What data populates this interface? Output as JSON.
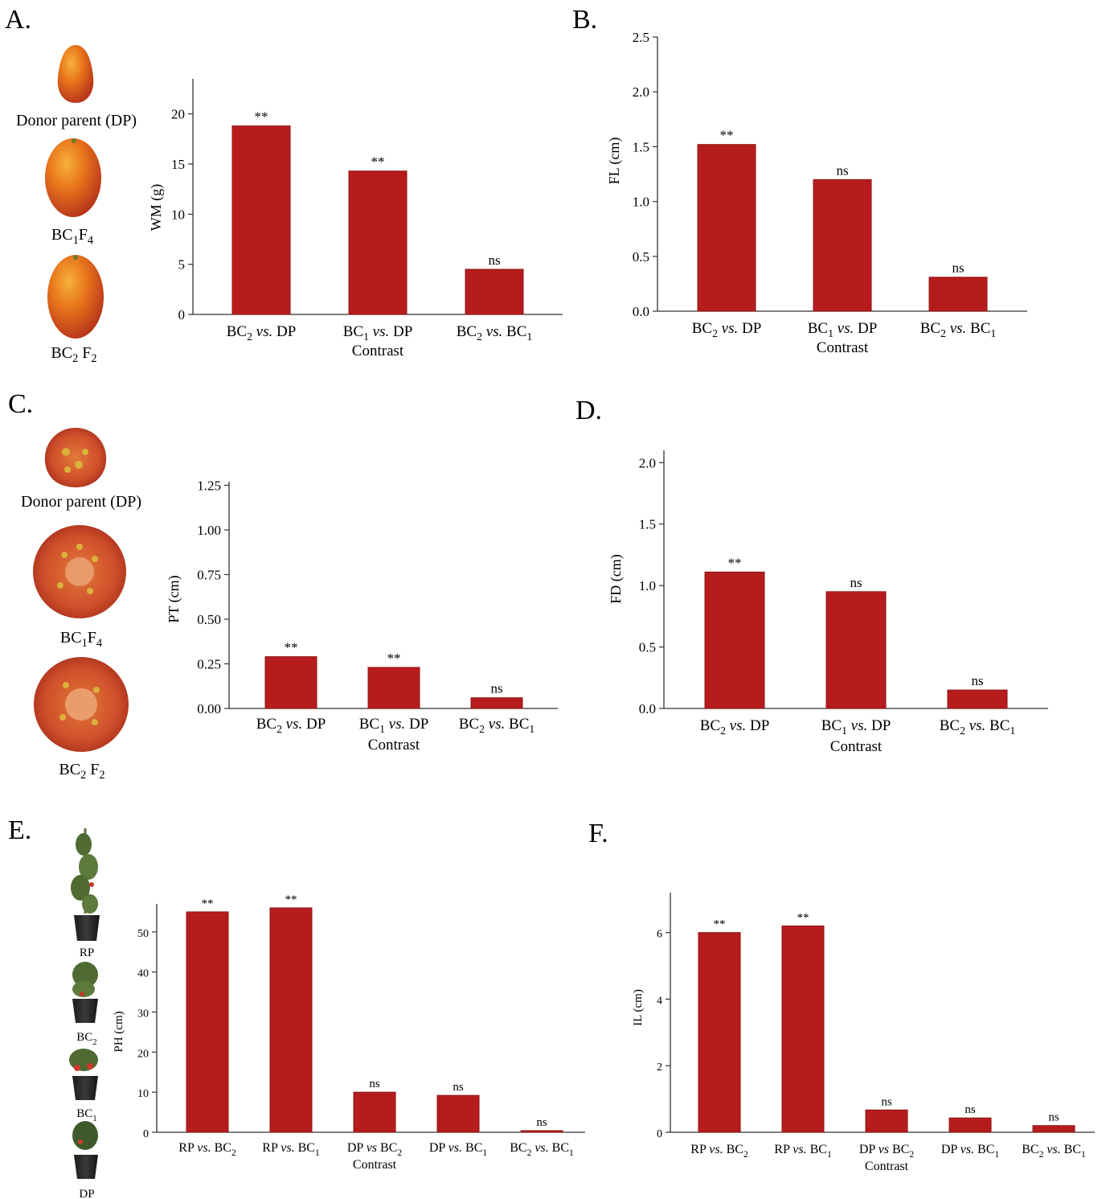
{
  "bar_color": "#b71c1c",
  "photo_labels": {
    "A": [
      "Donor parent (DP)",
      "BC1F4",
      "BC2 F2"
    ],
    "C": [
      "Donor parent (DP)",
      "BC1F4",
      "BC2 F2"
    ],
    "E": [
      "RP",
      "BC2",
      "BC1",
      "DP"
    ]
  },
  "chart_data": [
    {
      "panel": "A.",
      "type": "bar",
      "ylabel": "WM (g)",
      "xlabel": "Contrast",
      "categories": [
        "BC2 vs. DP",
        "BC1 vs. DP",
        "BC2 vs. BC1"
      ],
      "values": [
        18.8,
        14.3,
        4.5
      ],
      "significance": [
        "**",
        "**",
        "ns"
      ],
      "yticks": [
        0,
        5,
        10,
        15,
        20
      ],
      "ylim": [
        0,
        23.5
      ]
    },
    {
      "panel": "B.",
      "type": "bar",
      "ylabel": "FL (cm)",
      "xlabel": "Contrast",
      "categories": [
        "BC2 vs. DP",
        "BC1 vs. DP",
        "BC2 vs. BC1"
      ],
      "values": [
        1.52,
        1.2,
        0.31
      ],
      "significance": [
        "**",
        "ns",
        "ns"
      ],
      "yticks": [
        0.0,
        0.5,
        1.0,
        1.5,
        2.0,
        2.5
      ],
      "ylim": [
        0,
        2.5
      ]
    },
    {
      "panel": "C.",
      "type": "bar",
      "ylabel": "PT (cm)",
      "xlabel": "Contrast",
      "categories": [
        "BC2 vs. DP",
        "BC1 vs. DP",
        "BC2 vs. BC1"
      ],
      "values": [
        0.29,
        0.23,
        0.06
      ],
      "significance": [
        "**",
        "**",
        "ns"
      ],
      "yticks": [
        0.0,
        0.25,
        0.5,
        0.75,
        1.0,
        1.25
      ],
      "ylim": [
        0,
        1.27
      ]
    },
    {
      "panel": "D.",
      "type": "bar",
      "ylabel": "FD (cm)",
      "xlabel": "Contrast",
      "categories": [
        "BC2 vs. DP",
        "BC1 vs. DP",
        "BC2 vs. BC1"
      ],
      "values": [
        1.11,
        0.95,
        0.15
      ],
      "significance": [
        "**",
        "ns",
        "ns"
      ],
      "yticks": [
        0.0,
        0.5,
        1.0,
        1.5,
        2.0
      ],
      "ylim": [
        0,
        2.1
      ]
    },
    {
      "panel": "E.",
      "type": "bar",
      "ylabel": "PH (cm)",
      "xlabel": "Contrast",
      "categories": [
        "RP vs. BC2",
        "RP vs. BC1",
        "DP vs BC2",
        "DP vs. BC1",
        "BC2 vs. BC1"
      ],
      "values": [
        55,
        56,
        10,
        9.2,
        0.4
      ],
      "significance": [
        "**",
        "**",
        "ns",
        "ns",
        "ns"
      ],
      "yticks": [
        0,
        10,
        20,
        30,
        40,
        50
      ],
      "ylim": [
        0,
        57
      ]
    },
    {
      "panel": "F.",
      "type": "bar",
      "ylabel": "IL (cm)",
      "xlabel": "Contrast",
      "categories": [
        "RP vs. BC2",
        "RP vs. BC1",
        "DP vs BC2",
        "DP vs. BC1",
        "BC2 vs. BC1"
      ],
      "values": [
        6.0,
        6.2,
        0.67,
        0.43,
        0.2
      ],
      "significance": [
        "**",
        "**",
        "ns",
        "ns",
        "ns"
      ],
      "yticks": [
        0,
        2,
        4,
        6
      ],
      "ylim": [
        0,
        7.2
      ]
    }
  ]
}
